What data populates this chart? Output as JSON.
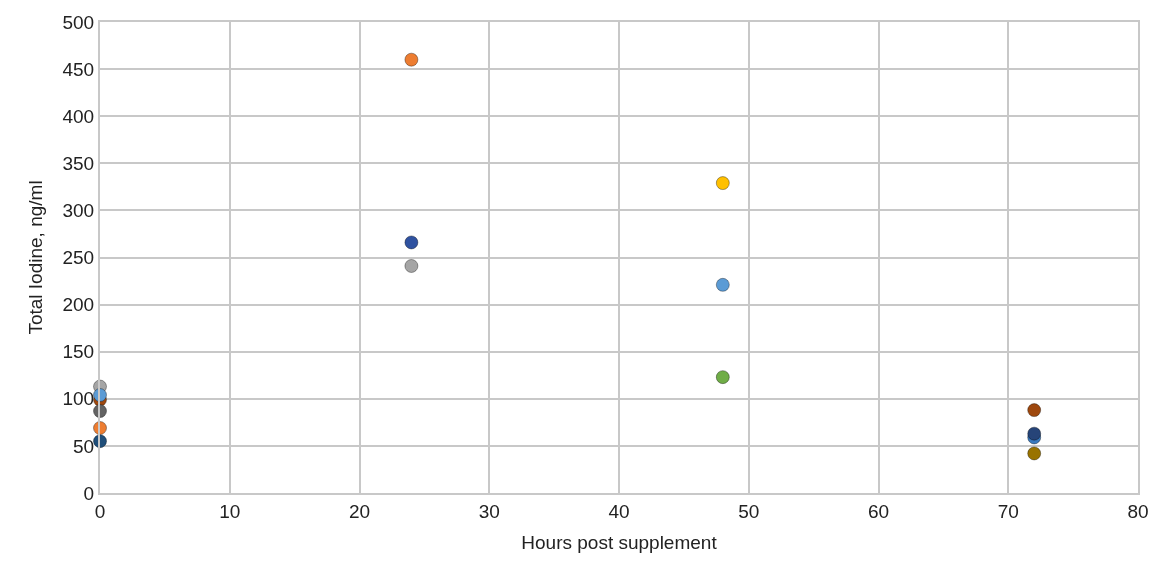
{
  "chart_data": {
    "type": "scatter",
    "xlabel": "Hours post supplement",
    "ylabel": "Total Iodine, ng/ml",
    "x": [
      0,
      0,
      0,
      0,
      0,
      0,
      24,
      24,
      24,
      48,
      48,
      48,
      72,
      72,
      72,
      72
    ],
    "values": [
      113,
      99,
      104,
      87,
      69,
      55,
      460,
      266,
      241,
      329,
      221,
      123,
      88,
      59,
      63,
      42
    ],
    "colors": [
      "#a5a5a5",
      "#9e480e",
      "#5b9bd5",
      "#636363",
      "#ed7d31",
      "#1f4e79",
      "#ed7d31",
      "#2f52a0",
      "#a5a5a5",
      "#ffc000",
      "#5b9bd5",
      "#70ad47",
      "#9e480e",
      "#3a7abf",
      "#264478",
      "#997300"
    ],
    "xlim": [
      0,
      80
    ],
    "xticks": [
      0,
      10,
      20,
      30,
      40,
      50,
      60,
      70,
      80
    ],
    "ylim": [
      0,
      500
    ],
    "yticks": [
      0,
      50,
      100,
      150,
      200,
      250,
      300,
      350,
      400,
      450,
      500
    ],
    "grid": true,
    "marker": "circle"
  }
}
